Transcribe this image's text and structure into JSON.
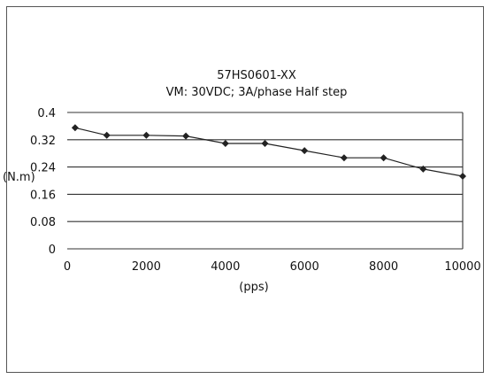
{
  "chart_data": {
    "type": "line",
    "title": "57HS0601-XX",
    "subtitle": "VM: 30VDC; 3A/phase  Half step",
    "xlabel": "(pps)",
    "ylabel": "(N.m)",
    "xlim": [
      0,
      10000
    ],
    "ylim": [
      0,
      0.4
    ],
    "x_ticks": [
      0,
      2000,
      4000,
      6000,
      8000,
      10000
    ],
    "x_tick_labels": [
      "0",
      "2000",
      "4000",
      "6000",
      "8000",
      "10000"
    ],
    "y_ticks": [
      0,
      0.08,
      0.16,
      0.24,
      0.32,
      0.4
    ],
    "y_tick_labels": [
      "0",
      "0.08",
      "0.16",
      "0.24",
      "0.32",
      "0.4"
    ],
    "grid": "horizontal",
    "line_color": "#222222",
    "series": [
      {
        "x": [
          200,
          1000,
          2000,
          3000,
          4000,
          5000,
          6000,
          7000,
          8000,
          9000,
          10000
        ],
        "y": [
          0.355,
          0.333,
          0.333,
          0.331,
          0.309,
          0.309,
          0.288,
          0.267,
          0.267,
          0.234,
          0.213
        ]
      }
    ]
  }
}
